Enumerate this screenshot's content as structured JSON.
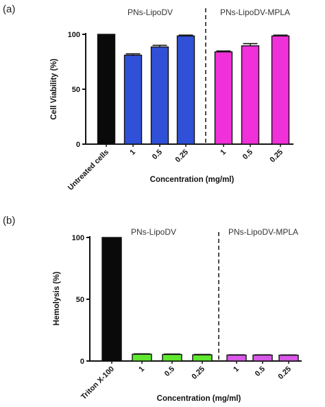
{
  "chart_data": [
    {
      "type": "bar",
      "panel_label": "(a)",
      "group_labels": [
        "PNs-LipoDV",
        "PNs-LipoDV-MPLA"
      ],
      "categories": [
        "Untreated cells",
        "1",
        "0.5",
        "0.25",
        "1",
        "0.5",
        "0.25"
      ],
      "values": [
        100,
        81,
        88.5,
        98.5,
        84,
        89.5,
        98.5
      ],
      "errors": [
        0,
        1.2,
        1.5,
        0.8,
        0.8,
        2.0,
        0.8
      ],
      "colors": [
        "#0a0a0a",
        "#3050d8",
        "#3050d8",
        "#3050d8",
        "#f030d8",
        "#f030d8",
        "#f030d8"
      ],
      "xlabel": "Concentration (mg/ml)",
      "ylabel": "Cell Viability (%)",
      "ylim": [
        0,
        100
      ],
      "yticks": [
        0,
        50,
        100
      ],
      "group_divider": "dashed line between 0.25 and 1"
    },
    {
      "type": "bar",
      "panel_label": "(b)",
      "group_labels": [
        "PNs-LipoDV",
        "PNs-LipoDV-MPLA"
      ],
      "categories": [
        "Triton X-100",
        "1",
        "0.5",
        "0.25",
        "1",
        "0.5",
        "0.25"
      ],
      "values": [
        100,
        5.5,
        5.3,
        5.0,
        4.8,
        4.8,
        4.7
      ],
      "errors": [
        0,
        0.3,
        0.3,
        0.3,
        0.2,
        0.2,
        0.2
      ],
      "colors": [
        "#0a0a0a",
        "#60e830",
        "#60e830",
        "#60e830",
        "#d858e8",
        "#d858e8",
        "#d858e8"
      ],
      "xlabel": "Concentration (mg/ml)",
      "ylabel": "Hemolysis (%)",
      "ylim": [
        0,
        100
      ],
      "yticks": [
        0,
        50,
        100
      ],
      "group_divider": "dashed line between 0.25 and 1"
    }
  ]
}
